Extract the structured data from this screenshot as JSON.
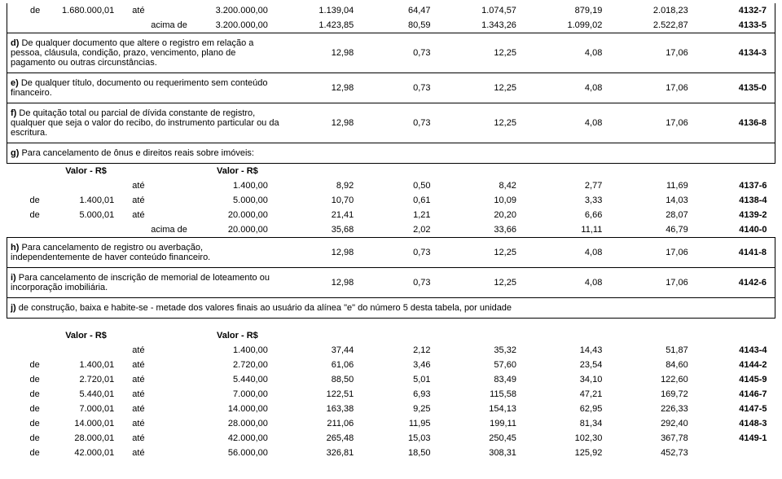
{
  "labels": {
    "de": "de",
    "ate": "até",
    "acima_de": "acima de",
    "valor_rs": "Valor - R$"
  },
  "topRows": [
    {
      "de": "de",
      "v1": "1.680.000,01",
      "lab2": "até",
      "v2": "3.200.000,00",
      "c1": "1.139,04",
      "c2": "64,47",
      "c3": "1.074,57",
      "c4": "879,19",
      "c5": "2.018,23",
      "code": "4132-7"
    },
    {
      "de": "",
      "v1": "",
      "lab2": "acima de",
      "v2": "3.200.000,00",
      "c1": "1.423,85",
      "c2": "80,59",
      "c3": "1.343,26",
      "c4": "1.099,02",
      "c5": "2.522,87",
      "code": "4133-5"
    }
  ],
  "items": [
    {
      "lead": "d)",
      "text": " De qualquer documento que altere o registro em relação a pessoa, cláusula, condição, prazo, vencimento, plano de pagamento ou outras circunstâncias.",
      "c1": "12,98",
      "c2": "0,73",
      "c3": "12,25",
      "c4": "4,08",
      "c5": "17,06",
      "code": "4134-3"
    },
    {
      "lead": "e)",
      "text": " De qualquer título, documento ou requerimento sem conteúdo financeiro.",
      "c1": "12,98",
      "c2": "0,73",
      "c3": "12,25",
      "c4": "4,08",
      "c5": "17,06",
      "code": "4135-0"
    },
    {
      "lead": "f)",
      "text": " De quitação total ou parcial de dívida constante de registro, qualquer que seja o valor do recibo, do instrumento particular ou da escritura.",
      "c1": "12,98",
      "c2": "0,73",
      "c3": "12,25",
      "c4": "4,08",
      "c5": "17,06",
      "code": "4136-8"
    }
  ],
  "gHeader": {
    "lead": "g)",
    "text": " Para cancelamento de ônus e direitos reais sobre imóveis:"
  },
  "gRows": [
    {
      "de": "",
      "v1": "",
      "lab2": "até",
      "v2": "1.400,00",
      "c1": "8,92",
      "c2": "0,50",
      "c3": "8,42",
      "c4": "2,77",
      "c5": "11,69",
      "code": "4137-6"
    },
    {
      "de": "de",
      "v1": "1.400,01",
      "lab2": "até",
      "v2": "5.000,00",
      "c1": "10,70",
      "c2": "0,61",
      "c3": "10,09",
      "c4": "3,33",
      "c5": "14,03",
      "code": "4138-4"
    },
    {
      "de": "de",
      "v1": "5.000,01",
      "lab2": "até",
      "v2": "20.000,00",
      "c1": "21,41",
      "c2": "1,21",
      "c3": "20,20",
      "c4": "6,66",
      "c5": "28,07",
      "code": "4139-2"
    },
    {
      "de": "",
      "v1": "",
      "lab2": "acima de",
      "v2": "20.000,00",
      "c1": "35,68",
      "c2": "2,02",
      "c3": "33,66",
      "c4": "11,11",
      "c5": "46,79",
      "code": "4140-0"
    }
  ],
  "hItem": {
    "lead": "h)",
    "text": " Para cancelamento de registro ou averbação, independentemente de haver conteúdo financeiro.",
    "c1": "12,98",
    "c2": "0,73",
    "c3": "12,25",
    "c4": "4,08",
    "c5": "17,06",
    "code": "4141-8"
  },
  "iItem": {
    "lead": "i)",
    "text": " Para cancelamento de inscrição de memorial de loteamento ou incorporação imobiliária.",
    "c1": "12,98",
    "c2": "0,73",
    "c3": "12,25",
    "c4": "4,08",
    "c5": "17,06",
    "code": "4142-6"
  },
  "jHeader": {
    "lead": "j)",
    "text": " de construção, baixa e habite-se - metade dos valores finais ao usuário da alínea \"e\" do número 5 desta tabela, por unidade"
  },
  "jRows": [
    {
      "de": "",
      "v1": "",
      "lab2": "até",
      "v2": "1.400,00",
      "c1": "37,44",
      "c2": "2,12",
      "c3": "35,32",
      "c4": "14,43",
      "c5": "51,87",
      "code": "4143-4"
    },
    {
      "de": "de",
      "v1": "1.400,01",
      "lab2": "até",
      "v2": "2.720,00",
      "c1": "61,06",
      "c2": "3,46",
      "c3": "57,60",
      "c4": "23,54",
      "c5": "84,60",
      "code": "4144-2"
    },
    {
      "de": "de",
      "v1": "2.720,01",
      "lab2": "até",
      "v2": "5.440,00",
      "c1": "88,50",
      "c2": "5,01",
      "c3": "83,49",
      "c4": "34,10",
      "c5": "122,60",
      "code": "4145-9"
    },
    {
      "de": "de",
      "v1": "5.440,01",
      "lab2": "até",
      "v2": "7.000,00",
      "c1": "122,51",
      "c2": "6,93",
      "c3": "115,58",
      "c4": "47,21",
      "c5": "169,72",
      "code": "4146-7"
    },
    {
      "de": "de",
      "v1": "7.000,01",
      "lab2": "até",
      "v2": "14.000,00",
      "c1": "163,38",
      "c2": "9,25",
      "c3": "154,13",
      "c4": "62,95",
      "c5": "226,33",
      "code": "4147-5"
    },
    {
      "de": "de",
      "v1": "14.000,01",
      "lab2": "até",
      "v2": "28.000,00",
      "c1": "211,06",
      "c2": "11,95",
      "c3": "199,11",
      "c4": "81,34",
      "c5": "292,40",
      "code": "4148-3"
    },
    {
      "de": "de",
      "v1": "28.000,01",
      "lab2": "até",
      "v2": "42.000,00",
      "c1": "265,48",
      "c2": "15,03",
      "c3": "250,45",
      "c4": "102,30",
      "c5": "367,78",
      "code": "4149-1"
    },
    {
      "de": "de",
      "v1": "42.000,01",
      "lab2": "até",
      "v2": "56.000,00",
      "c1": "326,81",
      "c2": "18,50",
      "c3": "308,31",
      "c4": "125,92",
      "c5": "452,73",
      "code": ""
    }
  ]
}
